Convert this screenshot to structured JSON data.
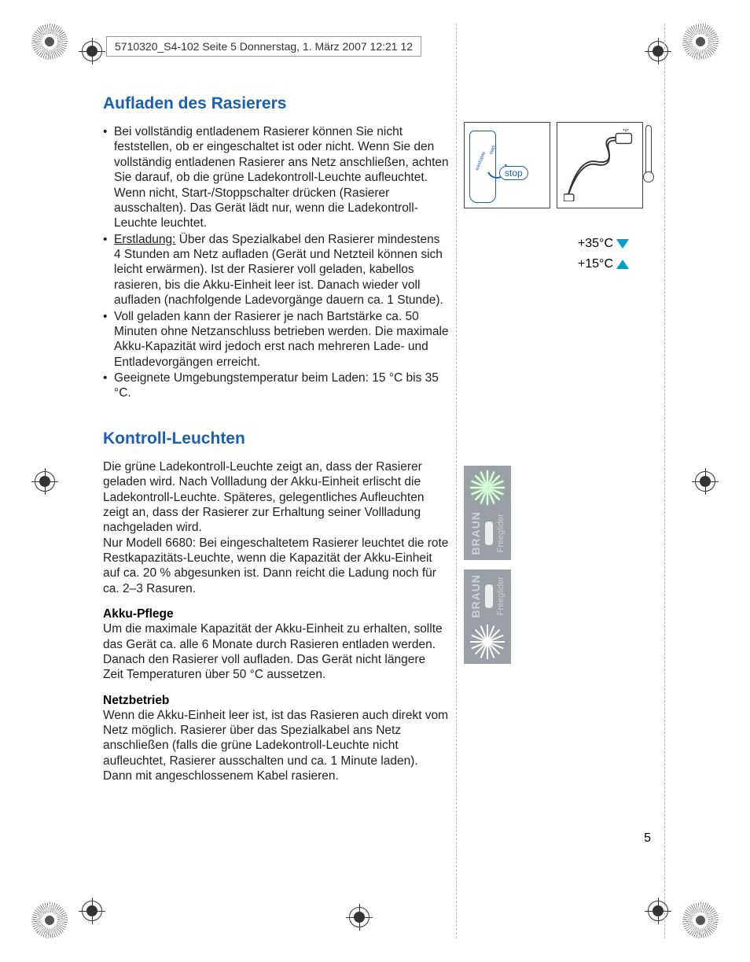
{
  "meta": {
    "header_text": "5710320_S4-102  Seite 5  Donnerstag, 1. März 2007  12:21 12",
    "page_number": "5"
  },
  "colors": {
    "heading": "#1a5fb4",
    "body": "#222222",
    "accent": "#00a0c8",
    "figure_border": "#444444",
    "led_bg": "#9aa0a6"
  },
  "section1": {
    "title": "Aufladen des Rasierers",
    "bullets": [
      "Bei vollständig entladenem Rasierer können Sie nicht feststellen, ob er eingeschaltet ist oder nicht. Wenn Sie  den vollständig entladenen Rasierer ans Netz anschließen, achten Sie darauf, ob die grüne Ladekontroll-Leuchte aufleuchtet. Wenn nicht, Start-/Stoppschalter drücken (Rasierer ausschalten). Das Gerät lädt nur, wenn die Ladekontroll-Leuchte leuchtet.",
      "",
      "Voll geladen kann der Rasierer je nach Bartstärke ca. 50 Minuten ohne Netzanschluss betrieben werden. Die maximale Akku-Kapazität wird jedoch erst nach mehreren Lade- und Entladevorgängen erreicht.",
      "Geeignete Umgebungstemperatur beim Laden: 15 °C bis 35 °C."
    ],
    "bullet2_lead": "Erstladung:",
    "bullet2_rest": " Über das Spezialkabel den Rasierer mindestens 4 Stunden am Netz aufladen (Gerät und Netzteil können sich leicht erwärmen). Ist der Rasierer voll geladen, kabellos rasieren, bis die Akku-Einheit leer ist. Danach wieder voll aufladen (nachfolgende Ladevorgänge dauern ca. 1 Stunde)."
  },
  "section2": {
    "title": "Kontroll-Leuchten",
    "para1": "Die grüne Ladekontroll-Leuchte zeigt an, dass der Rasierer geladen wird. Nach Vollladung der Akku-Einheit erlischt die Ladekontroll-Leuchte. Späteres, gelegentliches Aufleuchten zeigt an, dass der Rasierer zur Erhaltung seiner Vollladung nachgeladen wird.",
    "para2": "Nur Modell 6680: Bei eingeschaltetem Rasierer leuchtet die rote Restkapazitäts-Leuchte, wenn die Kapazität der Akku-Einheit auf ca. 20 % abgesunken ist. Dann reicht die Ladung noch für ca. 2–3 Rasuren.",
    "sub1_title": "Akku-Pflege",
    "sub1_body": "Um die maximale Kapazität der Akku-Einheit zu erhalten, sollte das Gerät ca. alle 6 Monate durch Rasieren entladen werden. Danach den Rasierer voll aufladen. Das Gerät nicht längere Zeit Temperaturen über 50 °C aussetzen.",
    "sub2_title": "Netzbetrieb",
    "sub2_body": "Wenn die Akku-Einheit leer ist, ist das Rasieren auch direkt vom Netz möglich. Rasierer über das Spezialkabel ans Netz anschließen (falls die grüne Ladekontroll-Leuchte nicht aufleuchtet, Rasierer ausschalten und ca. 1 Minute laden). Dann mit angeschlossenem Kabel rasieren."
  },
  "figures": {
    "stop_label": "stop",
    "washable_label": "washable",
    "start_label": "start",
    "temp_hi": "+35°C",
    "temp_lo": "+15°C",
    "brand": "BRAUN",
    "model": "Freeglider"
  }
}
